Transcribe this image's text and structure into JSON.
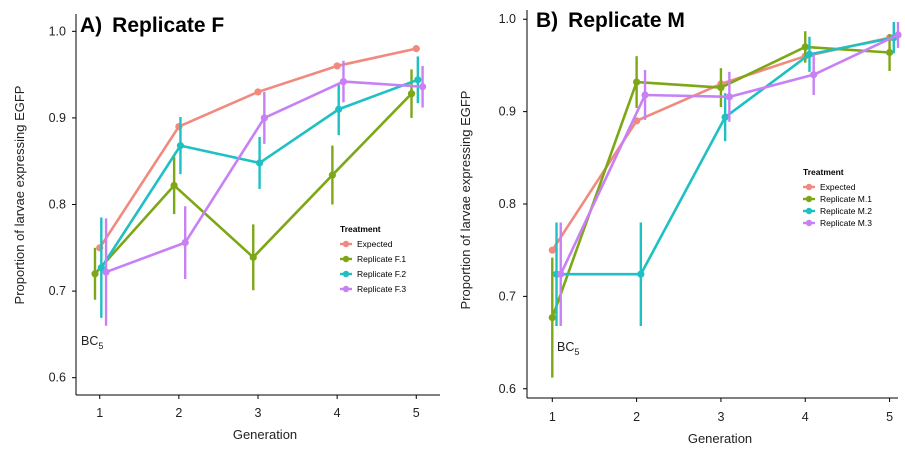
{
  "colors": {
    "Expected": "#F08A7E",
    "green": "#7EA717",
    "cyan": "#1FC0C4",
    "violet": "#C880F5"
  },
  "chart_data": [
    {
      "type": "line",
      "panel_label": "A)",
      "title": "Replicate F",
      "xlabel": "Generation",
      "ylabel": "Proportion of larvae expressing EGFP",
      "x": [
        1,
        2,
        3,
        4,
        5
      ],
      "xlim": [
        0.7,
        5.3
      ],
      "ylim": [
        0.58,
        1.02
      ],
      "yticks": [
        0.6,
        0.7,
        0.8,
        0.9,
        1.0
      ],
      "ytick_labels": [
        "0.6",
        "0.7",
        "0.8",
        "0.9",
        "1.0"
      ],
      "grid": false,
      "legend_title": "Treatment",
      "legend_position": "right-middle",
      "annotation_base": "BC",
      "annotation_sub": "5",
      "series": [
        {
          "name": "Expected",
          "color_key": "Expected",
          "offset": 0,
          "values": [
            0.75,
            0.89,
            0.93,
            0.96,
            0.98
          ],
          "err": null
        },
        {
          "name": "Replicate F.1",
          "color_key": "green",
          "offset": -0.06,
          "values": [
            0.72,
            0.822,
            0.739,
            0.834,
            0.928
          ],
          "err": [
            0.03,
            0.033,
            0.038,
            0.034,
            0.028
          ]
        },
        {
          "name": "Replicate F.2",
          "color_key": "cyan",
          "offset": 0.02,
          "values": [
            0.727,
            0.868,
            0.848,
            0.91,
            0.944
          ],
          "err": [
            0.058,
            0.033,
            0.03,
            0.03,
            0.027
          ]
        },
        {
          "name": "Replicate F.3",
          "color_key": "violet",
          "offset": 0.08,
          "values": [
            0.722,
            0.756,
            0.9,
            0.942,
            0.936
          ],
          "err": [
            0.062,
            0.042,
            0.03,
            0.024,
            0.024
          ]
        }
      ]
    },
    {
      "type": "line",
      "panel_label": "B)",
      "title": "Replicate M",
      "xlabel": "Generation",
      "ylabel": "Proportion of larvae expressing EGFP",
      "x": [
        1,
        2,
        3,
        4,
        5
      ],
      "xlim": [
        0.7,
        5.1
      ],
      "ylim": [
        0.59,
        1.01
      ],
      "yticks": [
        0.6,
        0.7,
        0.8,
        0.9,
        1.0
      ],
      "ytick_labels": [
        "0.6",
        "0.7",
        "0.8",
        "0.9",
        "1.0"
      ],
      "grid": false,
      "legend_title": "Treatment",
      "legend_position": "right-middle",
      "annotation_base": "BC",
      "annotation_sub": "5",
      "series": [
        {
          "name": "Expected",
          "color_key": "Expected",
          "offset": 0,
          "values": [
            0.75,
            0.89,
            0.93,
            0.96,
            0.98
          ],
          "err": null
        },
        {
          "name": "Replicate M.1",
          "color_key": "green",
          "offset": 0,
          "values": [
            0.677,
            0.932,
            0.926,
            0.97,
            0.964
          ],
          "err": [
            0.065,
            0.028,
            0.021,
            0.017,
            0.02
          ]
        },
        {
          "name": "Replicate M.2",
          "color_key": "cyan",
          "offset": 0.05,
          "values": [
            0.724,
            0.724,
            0.894,
            0.962,
            0.98
          ],
          "err": [
            0.056,
            0.056,
            0.026,
            0.019,
            0.017
          ]
        },
        {
          "name": "Replicate M.3",
          "color_key": "violet",
          "offset": 0.1,
          "values": [
            0.724,
            0.918,
            0.916,
            0.94,
            0.983
          ],
          "err": [
            0.056,
            0.027,
            0.027,
            0.022,
            0.014
          ]
        }
      ]
    }
  ]
}
